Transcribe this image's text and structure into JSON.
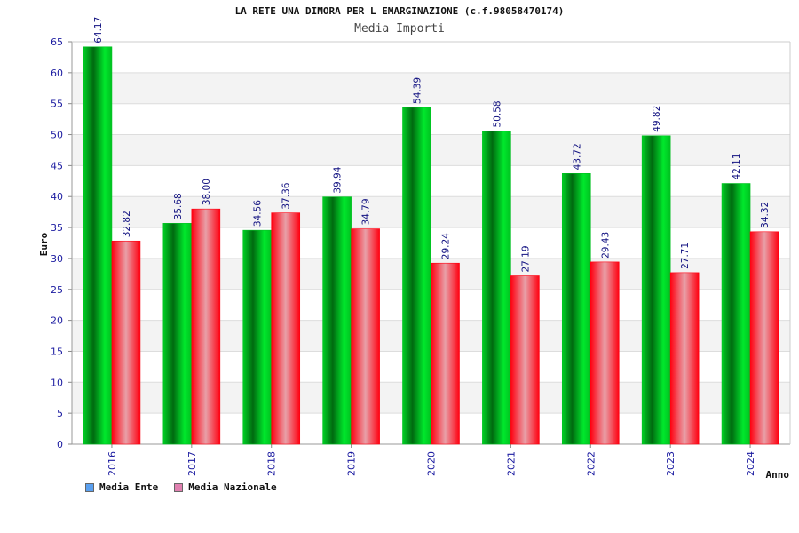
{
  "chart_data": {
    "type": "bar",
    "title": "LA RETE UNA DIMORA PER L EMARGINAZIONE (c.f.98058470174)",
    "subtitle": "Media Importi",
    "xlabel": "Anno",
    "ylabel": "Euro",
    "ylim": [
      0,
      65
    ],
    "yticks": [
      0,
      5,
      10,
      15,
      20,
      25,
      30,
      35,
      40,
      45,
      50,
      55,
      60,
      65
    ],
    "grid": true,
    "legend_position": "bottom-left",
    "categories": [
      "2016",
      "2017",
      "2018",
      "2019",
      "2020",
      "2021",
      "2022",
      "2023",
      "2024"
    ],
    "series": [
      {
        "name": "Media Ente",
        "values": [
          64.17,
          35.68,
          34.56,
          39.94,
          54.39,
          50.58,
          43.72,
          49.82,
          42.11
        ],
        "labels": [
          "64.17",
          "35.68",
          "34.56",
          "39.94",
          "54.39",
          "50.58",
          "43.72",
          "49.82",
          "42.11"
        ],
        "color": "#00c020",
        "legend_color": "#5aa0f0"
      },
      {
        "name": "Media Nazionale",
        "values": [
          32.82,
          38.0,
          37.36,
          34.79,
          29.24,
          27.19,
          29.43,
          27.71,
          34.32
        ],
        "labels": [
          "32.82",
          "38.00",
          "37.36",
          "34.79",
          "29.24",
          "27.19",
          "29.43",
          "27.71",
          "34.32"
        ],
        "color": "#ff0010",
        "legend_color": "#e080b0"
      }
    ]
  }
}
